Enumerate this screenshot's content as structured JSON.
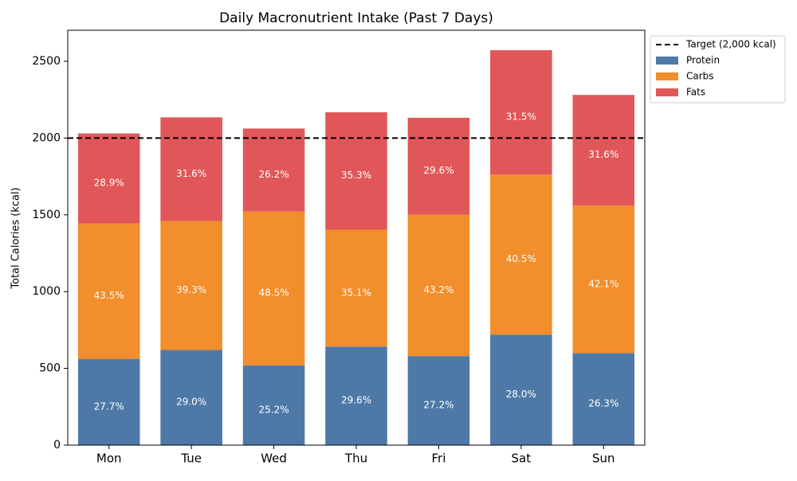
{
  "chart_data": {
    "type": "stacked_bar",
    "title": "Daily Macronutrient Intake (Past 7 Days)",
    "y_label": "Total Calories (kcal)",
    "categories": [
      "Mon",
      "Tue",
      "Wed",
      "Thu",
      "Fri",
      "Sat",
      "Sun"
    ],
    "series": [
      {
        "name": "Protein",
        "color": "#4e79a7",
        "values": [
          562,
          620,
          520,
          642,
          580,
          720,
          600
        ],
        "value_labels": [
          "27.7%",
          "29.0%",
          "25.2%",
          "29.6%",
          "27.2%",
          "28.0%",
          "26.3%"
        ]
      },
      {
        "name": "Carbs",
        "color": "#f28e2b",
        "values": [
          882,
          840,
          1001,
          761,
          921,
          1042,
          960
        ],
        "value_labels": [
          "43.5%",
          "39.3%",
          "48.5%",
          "35.1%",
          "43.2%",
          "40.5%",
          "42.1%"
        ]
      },
      {
        "name": "Fats",
        "color": "#e15759",
        "values": [
          586,
          675,
          541,
          765,
          631,
          810,
          721
        ],
        "value_labels": [
          "28.9%",
          "31.6%",
          "26.2%",
          "35.3%",
          "29.6%",
          "31.5%",
          "31.6%"
        ]
      }
    ],
    "target": {
      "name": "Target (2,000 kcal)",
      "value": 2000,
      "color": "#000000"
    },
    "ylim": [
      0,
      2702
    ],
    "yticks": [
      0,
      500,
      1000,
      1500,
      2000,
      2500
    ],
    "legend": "upper right outside"
  }
}
